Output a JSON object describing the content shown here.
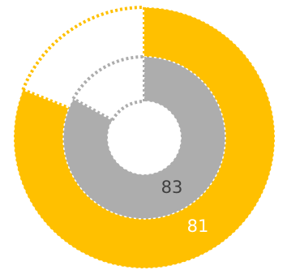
{
  "chart_data": {
    "type": "pie",
    "subtype": "nested-donut",
    "title": "",
    "unit": "percent",
    "series": [
      {
        "ring": "outer",
        "value": 81,
        "max": 100,
        "label": "81",
        "color": "#FFC000",
        "remainder_style": "dotted-outline"
      },
      {
        "ring": "inner",
        "value": 83,
        "max": 100,
        "label": "83",
        "color": "#ADADAD",
        "remainder_style": "dotted-outline"
      }
    ],
    "label_colors": {
      "outer": "#ffffff",
      "inner": "#404040"
    },
    "outline_colors": {
      "outer": "#FFC000",
      "inner": "#ADADAD"
    },
    "separator_color": "#ffffff"
  }
}
